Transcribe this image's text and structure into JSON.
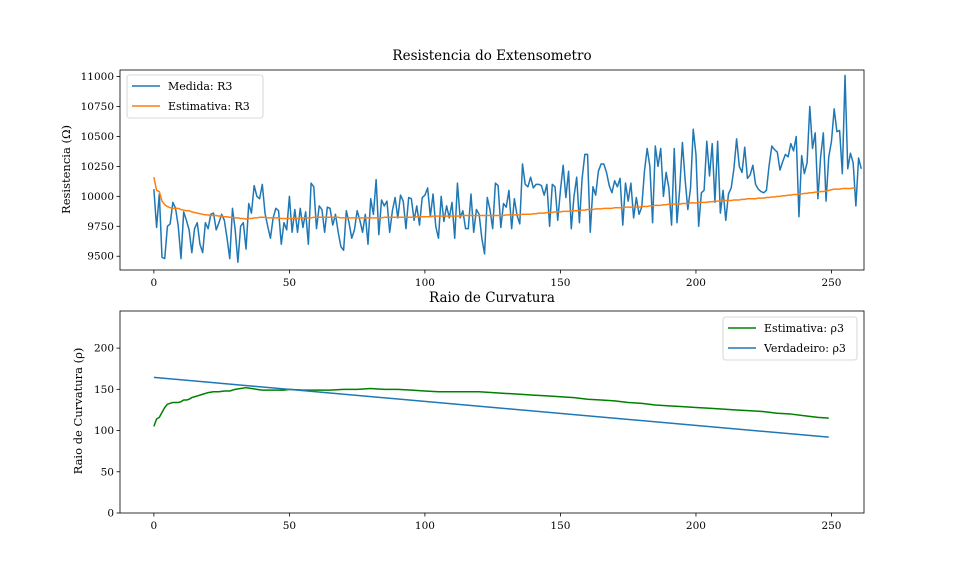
{
  "chart_data": [
    {
      "type": "line",
      "title": "Resistencia do Extensometro",
      "xlabel": "",
      "ylabel": "Resistencia (Ω)",
      "xlim": [
        -12.5,
        262
      ],
      "ylim": [
        9385,
        11055
      ],
      "xticks": [
        0,
        50,
        100,
        150,
        200,
        250
      ],
      "yticks": [
        9500,
        9750,
        10000,
        10250,
        10500,
        10750,
        11000
      ],
      "xtick_labels": [
        "0",
        "50",
        "100",
        "150",
        "200",
        "250"
      ],
      "ytick_labels": [
        "9500",
        "9750",
        "10000",
        "10250",
        "10500",
        "10750",
        "11000"
      ],
      "grid": false,
      "legend_position": "upper left",
      "series": [
        {
          "name": "Medida: R3",
          "color": "#1f77b4",
          "x_start": 0,
          "x_step": 1,
          "values": [
            10060,
            9740,
            10020,
            9490,
            9480,
            9750,
            9770,
            9950,
            9900,
            9750,
            9480,
            9870,
            9800,
            9720,
            9530,
            9730,
            9780,
            9600,
            9530,
            9780,
            9730,
            9850,
            9860,
            9720,
            9780,
            9850,
            9800,
            9650,
            9480,
            9900,
            9720,
            9450,
            9750,
            9780,
            9560,
            9940,
            9860,
            10090,
            10000,
            9980,
            10100,
            9860,
            9750,
            9650,
            9820,
            9900,
            9880,
            9600,
            9780,
            9720,
            10000,
            9700,
            9890,
            9700,
            9900,
            9740,
            9870,
            9600,
            10110,
            10080,
            9730,
            9920,
            9890,
            9700,
            9910,
            9900,
            9760,
            9850,
            9700,
            9580,
            9550,
            9880,
            9780,
            9650,
            9720,
            9880,
            9800,
            9700,
            9850,
            9600,
            9980,
            9850,
            10140,
            9680,
            9970,
            9920,
            9960,
            9700,
            9880,
            9990,
            9820,
            10010,
            9960,
            9730,
            9990,
            9980,
            9800,
            9920,
            9760,
            9990,
            10010,
            10070,
            9830,
            10020,
            9750,
            9650,
            10000,
            9790,
            9920,
            9820,
            9950,
            9650,
            10110,
            9820,
            9880,
            9730,
            9730,
            10020,
            9700,
            9890,
            9850,
            9650,
            9520,
            9990,
            9890,
            9730,
            10110,
            10090,
            9740,
            9940,
            9910,
            10050,
            9730,
            9980,
            9840,
            9770,
            10270,
            10100,
            10080,
            10160,
            10070,
            10100,
            10100,
            10090,
            10010,
            10100,
            9750,
            10100,
            10080,
            9800,
            10050,
            10260,
            9990,
            10210,
            9730,
            10000,
            10160,
            9780,
            10150,
            10350,
            10350,
            9700,
            10080,
            10010,
            10210,
            10270,
            10270,
            10200,
            10090,
            10030,
            10130,
            10080,
            10150,
            9760,
            10110,
            9960,
            10110,
            9820,
            9990,
            9850,
            9910,
            10210,
            10400,
            10250,
            9780,
            10420,
            10250,
            10400,
            10000,
            10200,
            10070,
            9760,
            10400,
            9780,
            10060,
            10450,
            10140,
            9890,
            10070,
            10560,
            10350,
            9750,
            10030,
            10050,
            10460,
            10170,
            10440,
            9950,
            10460,
            9860,
            10050,
            9800,
            10020,
            10070,
            10230,
            10480,
            10250,
            10200,
            10410,
            10150,
            10180,
            10260,
            10100,
            10060,
            10040,
            10030,
            10050,
            10260,
            10420,
            10390,
            10370,
            10220,
            10290,
            10350,
            10330,
            10440,
            10380,
            10500,
            9830,
            10340,
            10190,
            10280,
            10750,
            10400,
            10530,
            9980,
            10330,
            10530,
            9960,
            10330,
            10460,
            10730,
            10540,
            10550,
            10190,
            11010,
            10230,
            10360,
            10280,
            9920,
            10320,
            10230
          ],
          "display_note": "series drawn from listed values"
        },
        {
          "name": "Estimativa: R3",
          "color": "#ff7f0e",
          "x_start": 0,
          "x_step": 1,
          "values": [
            10160,
            10050,
            10040,
            9960,
            9930,
            9915,
            9905,
            9900,
            9900,
            9900,
            9890,
            9885,
            9880,
            9880,
            9870,
            9865,
            9860,
            9855,
            9850,
            9845,
            9845,
            9840,
            9840,
            9840,
            9835,
            9835,
            9830,
            9830,
            9825,
            9825,
            9820,
            9820,
            9815,
            9815,
            9810,
            9815,
            9815,
            9820,
            9820,
            9825,
            9825,
            9825,
            9820,
            9820,
            9820,
            9820,
            9820,
            9815,
            9815,
            9815,
            9815,
            9815,
            9815,
            9815,
            9820,
            9820,
            9820,
            9820,
            9820,
            9825,
            9825,
            9825,
            9825,
            9825,
            9825,
            9825,
            9825,
            9825,
            9825,
            9820,
            9820,
            9820,
            9820,
            9820,
            9820,
            9820,
            9820,
            9820,
            9820,
            9820,
            9820,
            9820,
            9820,
            9820,
            9820,
            9825,
            9825,
            9825,
            9825,
            9825,
            9825,
            9825,
            9825,
            9825,
            9825,
            9825,
            9825,
            9830,
            9830,
            9830,
            9830,
            9830,
            9830,
            9835,
            9835,
            9835,
            9835,
            9835,
            9835,
            9835,
            9835,
            9835,
            9835,
            9835,
            9840,
            9840,
            9840,
            9840,
            9840,
            9840,
            9840,
            9840,
            9840,
            9840,
            9840,
            9840,
            9840,
            9840,
            9840,
            9840,
            9845,
            9845,
            9845,
            9845,
            9845,
            9845,
            9850,
            9850,
            9850,
            9850,
            9855,
            9855,
            9860,
            9860,
            9860,
            9865,
            9865,
            9865,
            9870,
            9870,
            9870,
            9875,
            9875,
            9875,
            9880,
            9880,
            9880,
            9880,
            9885,
            9885,
            9890,
            9890,
            9890,
            9895,
            9895,
            9895,
            9900,
            9900,
            9900,
            9900,
            9905,
            9905,
            9905,
            9905,
            9910,
            9910,
            9910,
            9910,
            9910,
            9910,
            9915,
            9915,
            9915,
            9920,
            9920,
            9925,
            9925,
            9925,
            9930,
            9930,
            9935,
            9935,
            9935,
            9935,
            9935,
            9940,
            9940,
            9940,
            9945,
            9945,
            9945,
            9950,
            9950,
            9950,
            9950,
            9955,
            9955,
            9960,
            9960,
            9960,
            9960,
            9965,
            9965,
            9965,
            9970,
            9970,
            9970,
            9975,
            9975,
            9980,
            9980,
            9980,
            9980,
            9985,
            9985,
            9985,
            9990,
            9990,
            9995,
            9995,
            10000,
            10000,
            10005,
            10005,
            10010,
            10010,
            10015,
            10015,
            10020,
            10020,
            10025,
            10025,
            10030,
            10030,
            10035,
            10035,
            10040,
            10040,
            10045,
            10050,
            10055,
            10060,
            10060,
            10060,
            10065,
            10065,
            10065,
            10065,
            10070,
            10070
          ]
        }
      ]
    },
    {
      "type": "line",
      "title": "Raio de Curvatura",
      "xlabel": "",
      "ylabel": "Raio de Curvatura (ρ)",
      "xlim": [
        -12.5,
        262
      ],
      "ylim": [
        0,
        245
      ],
      "xticks": [
        0,
        50,
        100,
        150,
        200,
        250
      ],
      "yticks": [
        0,
        50,
        100,
        150,
        200
      ],
      "xtick_labels": [
        "0",
        "50",
        "100",
        "150",
        "200",
        "250"
      ],
      "ytick_labels": [
        "0",
        "50",
        "100",
        "150",
        "200"
      ],
      "grid": false,
      "legend_position": "upper right",
      "series": [
        {
          "name": "Estimativa: ρ3",
          "color": "#008000",
          "x": [
            0,
            1,
            2,
            3,
            4,
            5,
            6,
            7,
            8,
            9,
            10,
            11,
            12,
            13,
            14,
            15,
            16,
            17,
            18,
            19,
            20,
            22,
            24,
            26,
            28,
            30,
            32,
            34,
            36,
            38,
            40,
            42,
            44,
            46,
            48,
            50,
            55,
            60,
            65,
            70,
            75,
            80,
            85,
            90,
            95,
            100,
            105,
            110,
            115,
            120,
            125,
            130,
            135,
            140,
            145,
            150,
            155,
            160,
            165,
            170,
            175,
            180,
            185,
            190,
            195,
            200,
            205,
            210,
            215,
            220,
            225,
            230,
            235,
            240,
            245,
            249
          ],
          "values": [
            105,
            114,
            116,
            122,
            128,
            132,
            133,
            134,
            134,
            134,
            135,
            137,
            137,
            138,
            140,
            141,
            142,
            143,
            144,
            145,
            146,
            147,
            147,
            148,
            148,
            150,
            151,
            152,
            151,
            150,
            149,
            149,
            149,
            149,
            149,
            150,
            149,
            149,
            149,
            150,
            150,
            151,
            150,
            150,
            149,
            148,
            147,
            147,
            147,
            147,
            146,
            145,
            144,
            143,
            142,
            141,
            140,
            138,
            137,
            136,
            134,
            133,
            131,
            130,
            129,
            128,
            127,
            126,
            125,
            124,
            123,
            121,
            120,
            118,
            116,
            115
          ]
        },
        {
          "name": "Verdadeiro: ρ3",
          "color": "#1f77b4",
          "x": [
            0,
            249
          ],
          "values": [
            164.5,
            92
          ]
        }
      ]
    }
  ]
}
